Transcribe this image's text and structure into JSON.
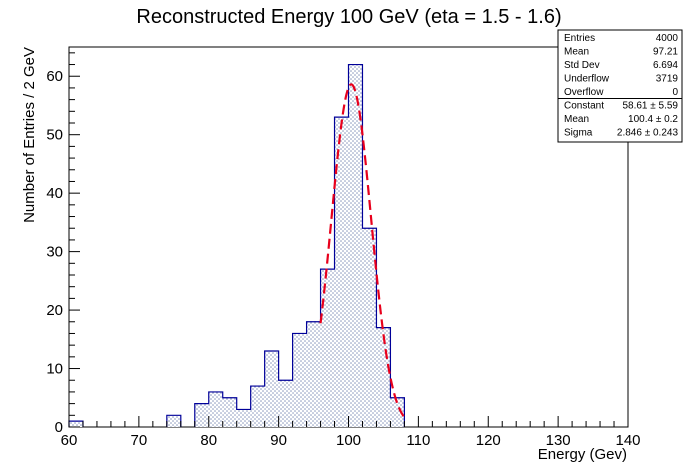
{
  "chart_data": {
    "type": "bar",
    "title": "Reconstructed Energy 100 GeV (eta = 1.5 - 1.6)",
    "xlabel": "Energy (Gev)",
    "ylabel": "Number of Entries / 2 GeV",
    "xlim": [
      60,
      140
    ],
    "ylim": [
      0,
      65
    ],
    "bin_width": 2,
    "x_ticks": [
      60,
      70,
      80,
      90,
      100,
      110,
      120,
      130,
      140
    ],
    "y_ticks": [
      0,
      10,
      20,
      30,
      40,
      50,
      60
    ],
    "bins": [
      {
        "x": [
          60,
          62
        ],
        "count": 1
      },
      {
        "x": [
          74,
          76
        ],
        "count": 2
      },
      {
        "x": [
          78,
          80
        ],
        "count": 4
      },
      {
        "x": [
          80,
          82
        ],
        "count": 6
      },
      {
        "x": [
          82,
          84
        ],
        "count": 5
      },
      {
        "x": [
          84,
          86
        ],
        "count": 3
      },
      {
        "x": [
          86,
          88
        ],
        "count": 7
      },
      {
        "x": [
          88,
          90
        ],
        "count": 13
      },
      {
        "x": [
          90,
          92
        ],
        "count": 8
      },
      {
        "x": [
          92,
          94
        ],
        "count": 16
      },
      {
        "x": [
          94,
          96
        ],
        "count": 18
      },
      {
        "x": [
          96,
          98
        ],
        "count": 27
      },
      {
        "x": [
          98,
          100
        ],
        "count": 53
      },
      {
        "x": [
          100,
          102
        ],
        "count": 62
      },
      {
        "x": [
          102,
          104
        ],
        "count": 34
      },
      {
        "x": [
          104,
          106
        ],
        "count": 17
      },
      {
        "x": [
          106,
          108
        ],
        "count": 5
      }
    ],
    "fit": {
      "function": "gaussian",
      "range": [
        96,
        108
      ],
      "constant": 58.61,
      "mean": 100.4,
      "sigma": 2.846,
      "color": "#e8001c",
      "style": "dashed"
    },
    "colors": {
      "histogram_line": "#000099",
      "histogram_fill": "#7f8fb8"
    },
    "stats_box": {
      "placement": "top-right",
      "rows": [
        {
          "label": "Entries",
          "value": "4000"
        },
        {
          "label": "Mean",
          "value": "97.21"
        },
        {
          "label": "Std Dev",
          "value": "6.694"
        },
        {
          "label": "Underflow",
          "value": "3719"
        },
        {
          "label": "Overflow",
          "value": "0"
        },
        {
          "label": "Constant",
          "value": "58.61 ± 5.59"
        },
        {
          "label": "Mean",
          "value": "100.4 ± 0.2"
        },
        {
          "label": "Sigma",
          "value": "2.846 ± 0.243"
        }
      ]
    }
  }
}
